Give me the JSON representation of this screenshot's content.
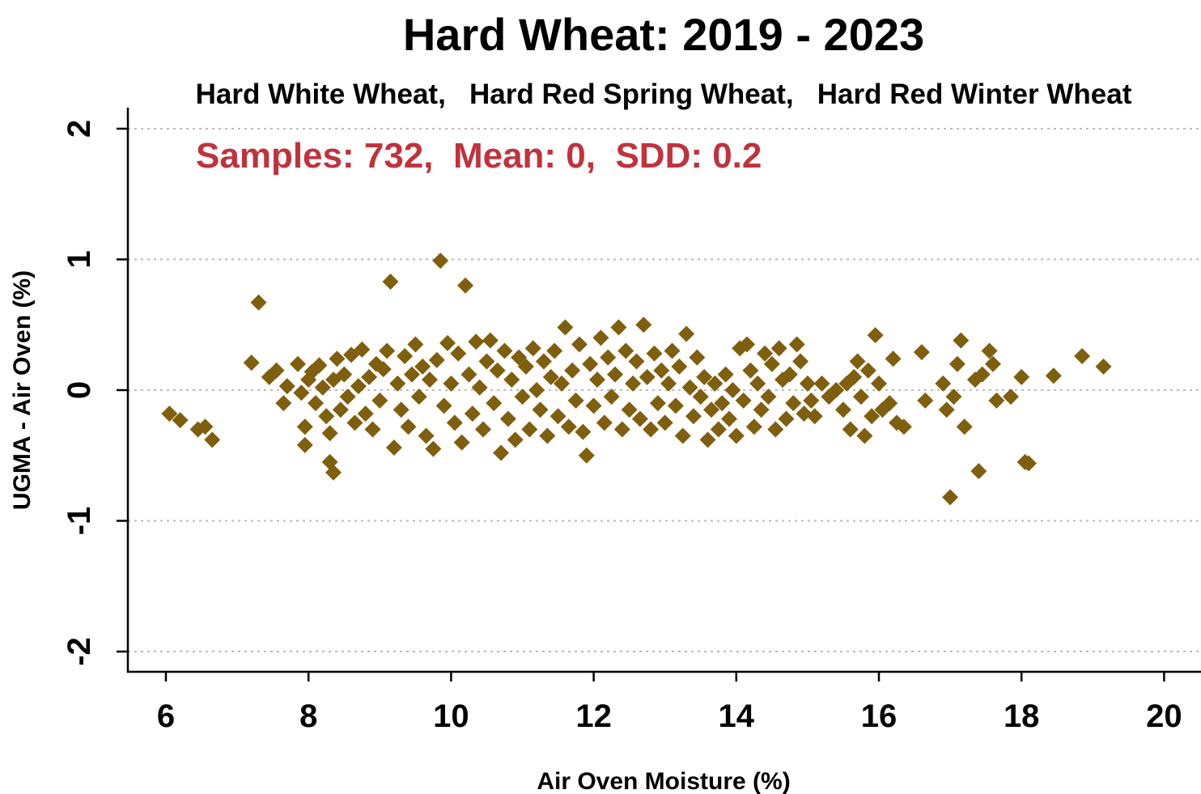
{
  "chart_data": {
    "type": "scatter",
    "title": "Hard Wheat: 2019 - 2023",
    "subtitle": "Hard White Wheat,   Hard Red Spring Wheat,   Hard Red Winter Wheat",
    "annotation": "Samples: 732,  Mean: 0,  SDD: 0.2",
    "xlabel": "Air Oven Moisture (%)",
    "ylabel": "UGMA - Air Oven (%)",
    "xlim": [
      5.5,
      20.3
    ],
    "ylim": [
      -2.15,
      2.05
    ],
    "x_ticks": [
      6,
      8,
      10,
      12,
      14,
      16,
      18,
      20
    ],
    "x_tick_labels": [
      "6",
      "8",
      "10",
      "12",
      "14",
      "16",
      "18",
      "20"
    ],
    "y_ticks": [
      -2,
      -1,
      0,
      1,
      2
    ],
    "y_tick_labels": [
      "-2",
      "-1",
      "0",
      "1",
      "2"
    ],
    "grid": {
      "horizontal": true,
      "style": "dotted"
    },
    "marker": "diamond",
    "colors": {
      "points": "#7f5f0e",
      "annotation": "#c0323c",
      "grid": "#bbbbbb",
      "axis": "#000000"
    },
    "points": [
      [
        6.05,
        -0.18
      ],
      [
        6.2,
        -0.23
      ],
      [
        6.45,
        -0.3
      ],
      [
        6.55,
        -0.28
      ],
      [
        6.65,
        -0.38
      ],
      [
        7.2,
        0.21
      ],
      [
        7.3,
        0.67
      ],
      [
        7.45,
        0.1
      ],
      [
        7.55,
        0.15
      ],
      [
        7.65,
        -0.1
      ],
      [
        7.7,
        0.03
      ],
      [
        7.85,
        0.2
      ],
      [
        7.9,
        -0.02
      ],
      [
        7.95,
        -0.28
      ],
      [
        7.95,
        -0.42
      ],
      [
        8.0,
        0.08
      ],
      [
        8.05,
        0.14
      ],
      [
        8.1,
        -0.1
      ],
      [
        8.15,
        0.19
      ],
      [
        8.2,
        0.02
      ],
      [
        8.25,
        -0.2
      ],
      [
        8.3,
        -0.55
      ],
      [
        8.3,
        -0.33
      ],
      [
        8.35,
        -0.63
      ],
      [
        8.35,
        0.08
      ],
      [
        8.4,
        0.24
      ],
      [
        8.45,
        -0.15
      ],
      [
        8.5,
        0.12
      ],
      [
        8.55,
        -0.05
      ],
      [
        8.6,
        0.27
      ],
      [
        8.65,
        -0.25
      ],
      [
        8.7,
        0.03
      ],
      [
        8.75,
        0.31
      ],
      [
        8.8,
        -0.18
      ],
      [
        8.85,
        0.1
      ],
      [
        8.9,
        -0.3
      ],
      [
        8.95,
        0.2
      ],
      [
        9.0,
        -0.08
      ],
      [
        9.05,
        0.16
      ],
      [
        9.1,
        0.3
      ],
      [
        9.15,
        0.83
      ],
      [
        9.2,
        -0.44
      ],
      [
        9.25,
        0.05
      ],
      [
        9.3,
        -0.15
      ],
      [
        9.35,
        0.26
      ],
      [
        9.4,
        -0.28
      ],
      [
        9.45,
        0.12
      ],
      [
        9.5,
        0.35
      ],
      [
        9.55,
        -0.05
      ],
      [
        9.6,
        0.18
      ],
      [
        9.65,
        -0.35
      ],
      [
        9.7,
        0.08
      ],
      [
        9.75,
        -0.45
      ],
      [
        9.8,
        0.23
      ],
      [
        9.85,
        0.99
      ],
      [
        9.9,
        -0.12
      ],
      [
        9.95,
        0.36
      ],
      [
        10.0,
        0.05
      ],
      [
        10.05,
        -0.25
      ],
      [
        10.1,
        0.28
      ],
      [
        10.15,
        -0.4
      ],
      [
        10.2,
        0.8
      ],
      [
        10.25,
        0.12
      ],
      [
        10.3,
        -0.18
      ],
      [
        10.35,
        0.37
      ],
      [
        10.4,
        0.02
      ],
      [
        10.45,
        -0.3
      ],
      [
        10.5,
        0.22
      ],
      [
        10.55,
        0.38
      ],
      [
        10.6,
        -0.1
      ],
      [
        10.65,
        0.15
      ],
      [
        10.7,
        -0.48
      ],
      [
        10.75,
        0.3
      ],
      [
        10.8,
        -0.22
      ],
      [
        10.85,
        0.08
      ],
      [
        10.9,
        -0.38
      ],
      [
        10.95,
        0.25
      ],
      [
        11.0,
        -0.05
      ],
      [
        11.05,
        0.18
      ],
      [
        11.1,
        -0.3
      ],
      [
        11.15,
        0.32
      ],
      [
        11.2,
        0.0
      ],
      [
        11.25,
        -0.15
      ],
      [
        11.3,
        0.22
      ],
      [
        11.35,
        -0.35
      ],
      [
        11.4,
        0.1
      ],
      [
        11.45,
        0.3
      ],
      [
        11.5,
        -0.2
      ],
      [
        11.55,
        0.05
      ],
      [
        11.6,
        0.48
      ],
      [
        11.65,
        -0.28
      ],
      [
        11.7,
        0.15
      ],
      [
        11.75,
        -0.08
      ],
      [
        11.8,
        0.35
      ],
      [
        11.85,
        -0.32
      ],
      [
        11.9,
        -0.5
      ],
      [
        11.95,
        0.2
      ],
      [
        12.0,
        -0.12
      ],
      [
        12.05,
        0.08
      ],
      [
        12.1,
        0.4
      ],
      [
        12.15,
        -0.25
      ],
      [
        12.2,
        0.25
      ],
      [
        12.25,
        -0.05
      ],
      [
        12.3,
        0.12
      ],
      [
        12.35,
        0.48
      ],
      [
        12.4,
        -0.3
      ],
      [
        12.45,
        0.3
      ],
      [
        12.5,
        -0.15
      ],
      [
        12.55,
        0.05
      ],
      [
        12.6,
        0.22
      ],
      [
        12.65,
        -0.22
      ],
      [
        12.7,
        0.5
      ],
      [
        12.75,
        0.1
      ],
      [
        12.8,
        -0.3
      ],
      [
        12.85,
        0.28
      ],
      [
        12.9,
        -0.1
      ],
      [
        12.95,
        0.15
      ],
      [
        13.0,
        -0.25
      ],
      [
        13.05,
        0.05
      ],
      [
        13.1,
        0.3
      ],
      [
        13.15,
        -0.12
      ],
      [
        13.2,
        0.18
      ],
      [
        13.25,
        -0.35
      ],
      [
        13.3,
        0.43
      ],
      [
        13.35,
        0.02
      ],
      [
        13.4,
        -0.2
      ],
      [
        13.45,
        0.25
      ],
      [
        13.5,
        -0.05
      ],
      [
        13.55,
        0.1
      ],
      [
        13.6,
        -0.38
      ],
      [
        13.65,
        -0.15
      ],
      [
        13.7,
        0.05
      ],
      [
        13.75,
        -0.3
      ],
      [
        13.8,
        -0.1
      ],
      [
        13.85,
        0.12
      ],
      [
        13.9,
        -0.22
      ],
      [
        13.95,
        0.0
      ],
      [
        14.0,
        -0.35
      ],
      [
        14.05,
        0.32
      ],
      [
        14.1,
        -0.08
      ],
      [
        14.15,
        0.35
      ],
      [
        14.2,
        0.15
      ],
      [
        14.25,
        -0.28
      ],
      [
        14.3,
        0.05
      ],
      [
        14.35,
        -0.15
      ],
      [
        14.4,
        0.28
      ],
      [
        14.45,
        -0.05
      ],
      [
        14.5,
        0.2
      ],
      [
        14.55,
        -0.3
      ],
      [
        14.6,
        0.32
      ],
      [
        14.65,
        0.08
      ],
      [
        14.7,
        -0.22
      ],
      [
        14.75,
        0.12
      ],
      [
        14.8,
        -0.1
      ],
      [
        14.85,
        0.35
      ],
      [
        14.9,
        0.22
      ],
      [
        14.95,
        -0.18
      ],
      [
        15.0,
        0.05
      ],
      [
        15.05,
        -0.08
      ],
      [
        15.1,
        -0.2
      ],
      [
        15.2,
        0.05
      ],
      [
        15.3,
        -0.05
      ],
      [
        15.4,
        0.0
      ],
      [
        15.5,
        -0.15
      ],
      [
        15.55,
        0.05
      ],
      [
        15.6,
        -0.3
      ],
      [
        15.65,
        0.1
      ],
      [
        15.7,
        0.22
      ],
      [
        15.75,
        -0.05
      ],
      [
        15.8,
        -0.35
      ],
      [
        15.85,
        0.15
      ],
      [
        15.9,
        -0.2
      ],
      [
        15.95,
        0.42
      ],
      [
        16.0,
        0.05
      ],
      [
        16.05,
        -0.15
      ],
      [
        16.15,
        -0.1
      ],
      [
        16.2,
        0.24
      ],
      [
        16.25,
        -0.25
      ],
      [
        16.35,
        -0.28
      ],
      [
        16.6,
        0.29
      ],
      [
        16.65,
        -0.08
      ],
      [
        16.9,
        0.05
      ],
      [
        16.95,
        -0.15
      ],
      [
        17.0,
        -0.82
      ],
      [
        17.05,
        -0.05
      ],
      [
        17.1,
        0.2
      ],
      [
        17.15,
        0.38
      ],
      [
        17.2,
        -0.28
      ],
      [
        17.35,
        0.08
      ],
      [
        17.4,
        -0.62
      ],
      [
        17.45,
        0.12
      ],
      [
        17.55,
        0.3
      ],
      [
        17.6,
        0.2
      ],
      [
        17.65,
        -0.08
      ],
      [
        17.85,
        -0.05
      ],
      [
        18.0,
        0.1
      ],
      [
        18.05,
        -0.55
      ],
      [
        18.1,
        -0.56
      ],
      [
        18.45,
        0.11
      ],
      [
        18.85,
        0.26
      ],
      [
        19.15,
        0.18
      ]
    ]
  }
}
